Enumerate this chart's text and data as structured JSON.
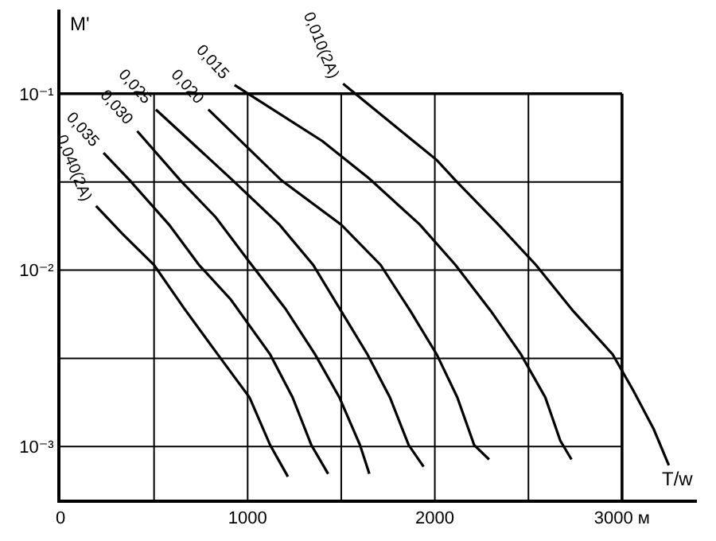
{
  "chart_data": {
    "type": "line",
    "xlabel": "T/w",
    "ylabel": "M'",
    "log": "y",
    "grid": true,
    "legend": false,
    "marker": "none",
    "line_style": "solid",
    "xlim": [
      0,
      3400
    ],
    "ylim": [
      0.0005,
      0.3
    ],
    "xticks": [
      0,
      {
        "value": 500,
        "label": null
      },
      1000,
      {
        "value": 1500,
        "label": null
      },
      2000,
      {
        "value": 2500,
        "label": null
      },
      {
        "value": 3000,
        "label": "3000 м"
      }
    ],
    "yticks": [
      {
        "value": 0.001,
        "label": "10⁻³"
      },
      {
        "value": 0.00316,
        "label": null
      },
      {
        "value": 0.01,
        "label": "10⁻²"
      },
      {
        "value": 0.0316,
        "label": null
      },
      {
        "value": 0.1,
        "label": "10⁻¹"
      }
    ],
    "series": [
      {
        "name": "0,040(2A)",
        "color": "#000000",
        "x": [
          190,
          330,
          500,
          660,
          840,
          1010,
          1120,
          1215
        ],
        "values": [
          0.0231,
          0.0161,
          0.0107,
          0.00608,
          0.00333,
          0.0019,
          0.00102,
          0.000675
        ]
      },
      {
        "name": "0,035",
        "color": "#000000",
        "x": [
          230,
          370,
          580,
          740,
          910,
          1120,
          1240,
          1340,
          1430
        ],
        "values": [
          0.0462,
          0.0323,
          0.0181,
          0.0107,
          0.00681,
          0.00333,
          0.0019,
          0.00102,
          0.0007
        ]
      },
      {
        "name": "0,030",
        "color": "#000000",
        "x": [
          410,
          640,
          830,
          1010,
          1200,
          1360,
          1490,
          1600,
          1650
        ],
        "values": [
          0.0614,
          0.0323,
          0.0199,
          0.0111,
          0.00608,
          0.00333,
          0.0019,
          0.00102,
          0.0007
        ]
      },
      {
        "name": "0,025",
        "color": "#000000",
        "x": [
          510,
          920,
          1170,
          1350,
          1500,
          1640,
          1760,
          1860,
          1940
        ],
        "values": [
          0.0813,
          0.0323,
          0.0181,
          0.0107,
          0.00585,
          0.00333,
          0.0019,
          0.00102,
          0.000769
        ]
      },
      {
        "name": "0,020",
        "color": "#000000",
        "x": [
          790,
          1180,
          1500,
          1710,
          1870,
          2010,
          2120,
          2210,
          2290
        ],
        "values": [
          0.0813,
          0.0323,
          0.0181,
          0.0107,
          0.00585,
          0.00333,
          0.0019,
          0.00102,
          0.000845
        ]
      },
      {
        "name": "0,015",
        "color": "#000000",
        "x": [
          930,
          1400,
          1650,
          1920,
          2110,
          2300,
          2460,
          2590,
          2670,
          2730
        ],
        "values": [
          0.112,
          0.0538,
          0.033,
          0.0181,
          0.0107,
          0.00585,
          0.00333,
          0.0019,
          0.00108,
          0.000845
        ]
      },
      {
        "name": "0,010(2A)",
        "color": "#000000",
        "x": [
          1510,
          1820,
          2010,
          2110,
          2340,
          2540,
          2740,
          2950,
          3060,
          3170,
          3250
        ],
        "values": [
          0.114,
          0.0614,
          0.0421,
          0.0323,
          0.0181,
          0.0107,
          0.00585,
          0.00333,
          0.00208,
          0.00125,
          0.000783
        ]
      }
    ]
  }
}
